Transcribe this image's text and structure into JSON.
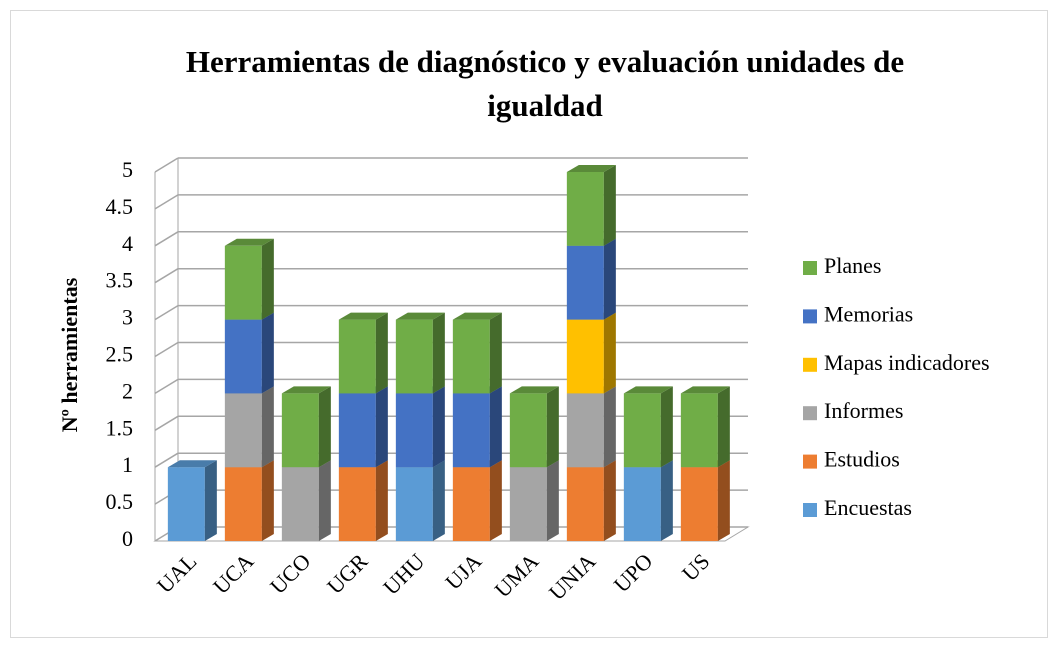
{
  "chart_data": {
    "type": "bar3d-stacked",
    "title": "Herramientas de diagnóstico y evaluación unidades de igualdad",
    "ylabel": "Nº herramientas",
    "categories": [
      "UAL",
      "UCA",
      "UCO",
      "UGR",
      "UHU",
      "UJA",
      "UMA",
      "UNIA",
      "UPO",
      "US"
    ],
    "series": [
      {
        "name": "Encuestas",
        "color": "#5b9bd5",
        "values": [
          1,
          0,
          0,
          0,
          1,
          0,
          0,
          0,
          1,
          0
        ]
      },
      {
        "name": "Estudios",
        "color": "#ed7d31",
        "values": [
          0,
          1,
          0,
          1,
          0,
          1,
          0,
          1,
          0,
          1
        ]
      },
      {
        "name": "Informes",
        "color": "#a5a5a5",
        "values": [
          0,
          1,
          1,
          0,
          0,
          0,
          1,
          1,
          0,
          0
        ]
      },
      {
        "name": "Mapas indicadores",
        "color": "#ffc000",
        "values": [
          0,
          0,
          0,
          0,
          0,
          0,
          0,
          1,
          0,
          0
        ]
      },
      {
        "name": "Memorias",
        "color": "#4472c4",
        "values": [
          0,
          1,
          0,
          1,
          1,
          1,
          0,
          1,
          0,
          0
        ]
      },
      {
        "name": "Planes",
        "color": "#70ad47",
        "values": [
          0,
          1,
          1,
          1,
          1,
          1,
          1,
          1,
          1,
          1
        ]
      }
    ],
    "ylim": [
      0,
      5
    ],
    "yticks": [
      0,
      0.5,
      1,
      1.5,
      2,
      2.5,
      3,
      3.5,
      4,
      4.5,
      5
    ],
    "grid": true,
    "legend": "right"
  }
}
